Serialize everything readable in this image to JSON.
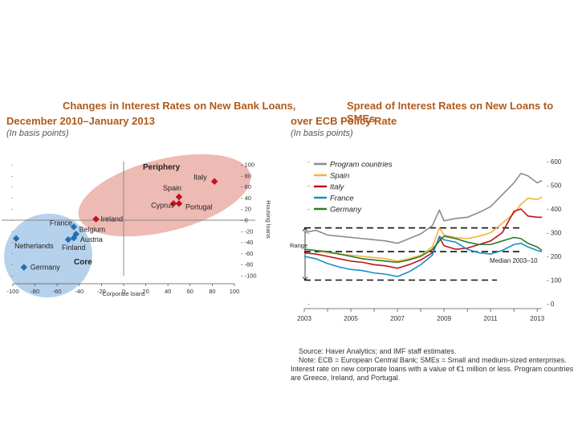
{
  "chart_data": [
    {
      "type": "scatter",
      "title_line1": "Changes in Interest Rates on New Bank Loans,",
      "title_line2": "December 2010–January 2013",
      "subtitle": "(In basis points)",
      "xlabel": "Corporate loans",
      "ylabel": "Housing loans",
      "xlim": [
        -100,
        100
      ],
      "ylim": [
        -100,
        100
      ],
      "x_ticks": [
        -100,
        -80,
        -60,
        -40,
        -20,
        0,
        20,
        40,
        60,
        80,
        100
      ],
      "y_ticks": [
        100,
        80,
        60,
        40,
        20,
        0,
        -20,
        -40,
        -60,
        -80,
        -100
      ],
      "groups": [
        {
          "name": "Periphery",
          "color": "#c0121e"
        },
        {
          "name": "Core",
          "color": "#1f6fb5"
        }
      ],
      "points": [
        {
          "label": "Italy",
          "x": 82,
          "y": 70,
          "group": "Periphery"
        },
        {
          "label": "Spain",
          "x": 50,
          "y": 42,
          "group": "Periphery"
        },
        {
          "label": "Cyprus",
          "x": 45,
          "y": 30,
          "group": "Periphery"
        },
        {
          "label": "Portugal",
          "x": 50,
          "y": 30,
          "group": "Periphery"
        },
        {
          "label": "Ireland",
          "x": -25,
          "y": 2,
          "group": "Periphery"
        },
        {
          "label": "France",
          "x": -45,
          "y": -12,
          "group": "Core"
        },
        {
          "label": "Belgium",
          "x": -43,
          "y": -25,
          "group": "Core"
        },
        {
          "label": "Austria",
          "x": -45,
          "y": -32,
          "group": "Core"
        },
        {
          "label": "Finland",
          "x": -50,
          "y": -35,
          "group": "Core"
        },
        {
          "label": "Netherlands",
          "x": -97,
          "y": -33,
          "group": "Core"
        },
        {
          "label": "Germany",
          "x": -90,
          "y": -85,
          "group": "Core"
        }
      ]
    },
    {
      "type": "line",
      "title_line1": "Spread of Interest Rates on New Loans to SMEs",
      "title_line2": "over ECB Policy Rate",
      "subtitle": "(In basis points)",
      "x_start": 2003,
      "x_end": 2013.2,
      "x_ticks": [
        2003,
        2005,
        2007,
        2009,
        2011,
        2013
      ],
      "ylim": [
        0,
        600
      ],
      "y_ticks": [
        600,
        500,
        400,
        300,
        200,
        100,
        0
      ],
      "range_label": "Range",
      "range_low": 100,
      "range_high": 320,
      "median_label": "Median 2003–10",
      "median_value": 220,
      "series": [
        {
          "name": "Program countries",
          "color": "#8c8c8c",
          "x": [
            2003,
            2003.5,
            2004,
            2004.5,
            2005,
            2005.5,
            2006,
            2006.5,
            2007,
            2007.5,
            2008,
            2008.5,
            2008.8,
            2009,
            2009.5,
            2010,
            2010.5,
            2011,
            2011.5,
            2012,
            2012.3,
            2012.6,
            2013,
            2013.2
          ],
          "values": [
            300,
            310,
            290,
            285,
            280,
            275,
            270,
            265,
            255,
            275,
            295,
            330,
            395,
            350,
            360,
            365,
            385,
            410,
            460,
            510,
            550,
            540,
            510,
            520
          ]
        },
        {
          "name": "Spain",
          "color": "#f0b43c",
          "x": [
            2003,
            2003.5,
            2004,
            2004.5,
            2005,
            2005.5,
            2006,
            2006.5,
            2007,
            2007.5,
            2008,
            2008.5,
            2008.8,
            2009,
            2009.5,
            2010,
            2010.5,
            2011,
            2011.5,
            2012,
            2012.3,
            2012.6,
            2013,
            2013.2
          ],
          "values": [
            230,
            225,
            215,
            210,
            205,
            200,
            195,
            190,
            180,
            190,
            205,
            240,
            320,
            290,
            280,
            275,
            285,
            300,
            340,
            380,
            420,
            445,
            440,
            450
          ]
        },
        {
          "name": "Italy",
          "color": "#c0121e",
          "x": [
            2003,
            2003.5,
            2004,
            2004.5,
            2005,
            2005.5,
            2006,
            2006.5,
            2007,
            2007.5,
            2008,
            2008.5,
            2008.8,
            2009,
            2009.5,
            2010,
            2010.5,
            2011,
            2011.5,
            2012,
            2012.3,
            2012.6,
            2013,
            2013.2
          ],
          "values": [
            215,
            210,
            200,
            190,
            180,
            175,
            165,
            160,
            150,
            165,
            185,
            215,
            280,
            245,
            230,
            235,
            250,
            265,
            300,
            390,
            400,
            370,
            365,
            365
          ]
        },
        {
          "name": "France",
          "color": "#1a8fc8",
          "x": [
            2003,
            2003.5,
            2004,
            2004.5,
            2005,
            2005.5,
            2006,
            2006.5,
            2007,
            2007.5,
            2008,
            2008.5,
            2008.8,
            2009,
            2009.5,
            2010,
            2010.5,
            2011,
            2011.5,
            2012,
            2012.3,
            2012.6,
            2013,
            2013.2
          ],
          "values": [
            200,
            190,
            170,
            155,
            145,
            140,
            130,
            125,
            115,
            135,
            165,
            205,
            285,
            270,
            260,
            230,
            215,
            210,
            225,
            250,
            255,
            240,
            225,
            220
          ]
        },
        {
          "name": "Germany",
          "color": "#2a7d2a",
          "x": [
            2003,
            2003.5,
            2004,
            2004.5,
            2005,
            2005.5,
            2006,
            2006.5,
            2007,
            2007.5,
            2008,
            2008.5,
            2008.8,
            2009,
            2009.5,
            2010,
            2010.5,
            2011,
            2011.5,
            2012,
            2012.3,
            2012.6,
            2013,
            2013.2
          ],
          "values": [
            230,
            225,
            220,
            210,
            200,
            190,
            185,
            180,
            175,
            185,
            200,
            230,
            265,
            285,
            275,
            260,
            250,
            250,
            265,
            280,
            275,
            255,
            240,
            225
          ]
        }
      ]
    }
  ],
  "notes": {
    "source": "Source: Haver Analytics; and IMF staff estimates.",
    "note": "Note: ECB = European Central Bank; SMEs = Small and medium-sized enterprises.",
    "definition_1": "Interest rate on new corporate loans with a value of €1 million or less. Program countries",
    "definition_2": "are Greece, Ireland, and Portugal."
  }
}
